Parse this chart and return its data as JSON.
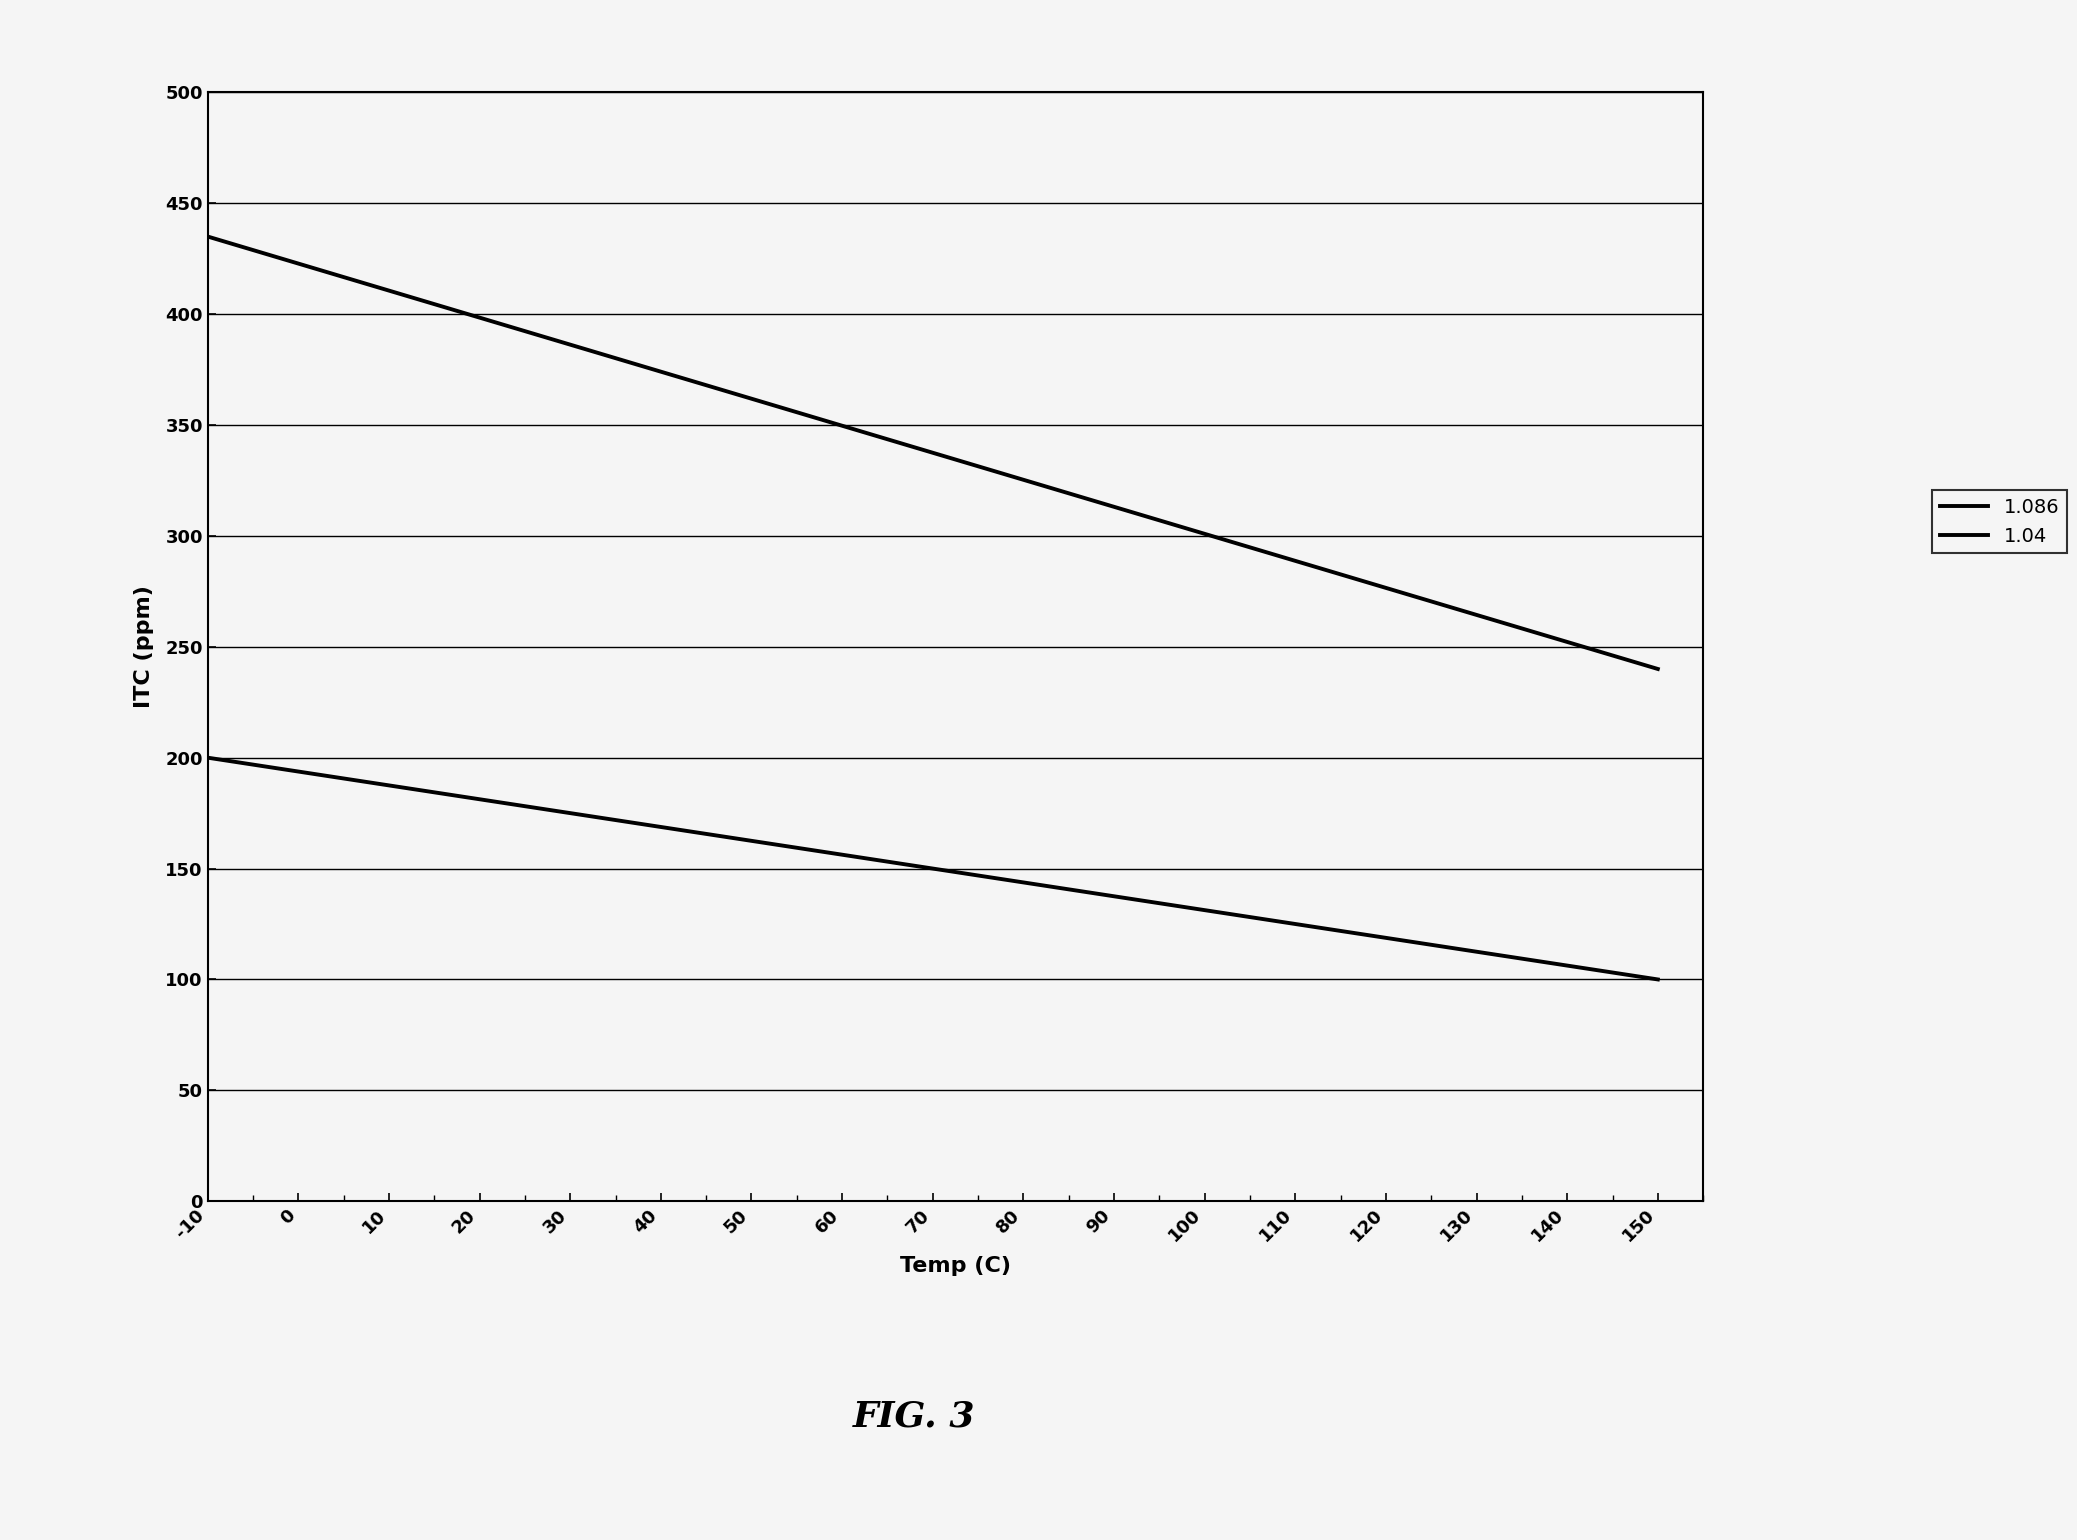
{
  "title": "FIG. 3",
  "xlabel": "Temp (C)",
  "ylabel": "ITC (ppm)",
  "xlim": [
    -10,
    155
  ],
  "ylim": [
    0,
    500
  ],
  "xticks": [
    -10,
    0,
    10,
    20,
    30,
    40,
    50,
    60,
    70,
    80,
    90,
    100,
    110,
    120,
    130,
    140,
    150
  ],
  "yticks": [
    0,
    50,
    100,
    150,
    200,
    250,
    300,
    350,
    400,
    450,
    500
  ],
  "line1_label": "1.086",
  "line1_x": [
    -10,
    150
  ],
  "line1_y": [
    435,
    240
  ],
  "line2_label": "1.04",
  "line2_x": [
    -10,
    150
  ],
  "line2_y": [
    200,
    100
  ],
  "line_color": "#000000",
  "background_color": "#f5f5f5",
  "grid_color": "#000000",
  "legend_fontsize": 14,
  "axis_label_fontsize": 16,
  "title_fontsize": 26,
  "tick_fontsize": 13
}
